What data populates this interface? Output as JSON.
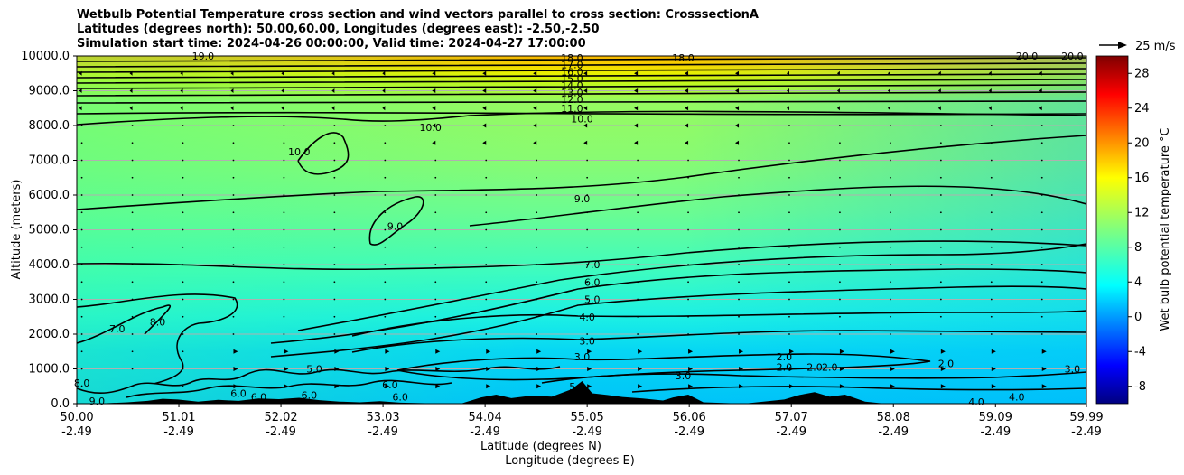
{
  "title_lines": [
    "Wetbulb Potential Temperature cross section and wind vectors parallel to cross section: CrosssectionA",
    "Latitudes (degrees north): 50.00,60.00, Longitudes (degrees east): -2.50,-2.50",
    "Simulation start time: 2024-04-26 00:00:00, Valid time: 2024-04-27 17:00:00"
  ],
  "chart_data": {
    "type": "heatmap",
    "ylabel": "Altitude (meters)",
    "xlabel": "Latitude (degrees N)",
    "xlabel2": "Longitude (degrees E)",
    "ylim": [
      0,
      10000
    ],
    "y_ticks": [
      "0.0",
      "1000.0",
      "2000.0",
      "3000.0",
      "4000.0",
      "5000.0",
      "6000.0",
      "7000.0",
      "8000.0",
      "9000.0",
      "10000.0"
    ],
    "x_ticks": [
      {
        "lat": "50.00",
        "lon": "-2.49"
      },
      {
        "lat": "51.01",
        "lon": "-2.49"
      },
      {
        "lat": "52.02",
        "lon": "-2.49"
      },
      {
        "lat": "53.03",
        "lon": "-2.49"
      },
      {
        "lat": "54.04",
        "lon": "-2.49"
      },
      {
        "lat": "55.05",
        "lon": "-2.49"
      },
      {
        "lat": "56.06",
        "lon": "-2.49"
      },
      {
        "lat": "57.07",
        "lon": "-2.49"
      },
      {
        "lat": "58.08",
        "lon": "-2.49"
      },
      {
        "lat": "59.09",
        "lon": "-2.49"
      },
      {
        "lat": "59.99",
        "lon": "-2.49"
      }
    ],
    "grid": "horizontal",
    "colorbar": {
      "label": "Wet bulb potential temperature $^\\circ$C",
      "label_display": "Wet bulb potential temperature °C",
      "range": [
        -10,
        30
      ],
      "ticks": [
        "-8",
        "-4",
        "0",
        "4",
        "8",
        "12",
        "16",
        "20",
        "24",
        "28"
      ],
      "colormap": "jet"
    },
    "wind_key": {
      "label": "25 m/s"
    },
    "contour_labels": [
      {
        "text": "18.0",
        "x": 54.9,
        "y": 9950
      },
      {
        "text": "17.0",
        "x": 54.9,
        "y": 9750
      },
      {
        "text": "16.0",
        "x": 54.9,
        "y": 9550
      },
      {
        "text": "15.0",
        "x": 54.9,
        "y": 9350
      },
      {
        "text": "14.0",
        "x": 54.9,
        "y": 9150
      },
      {
        "text": "13.0",
        "x": 54.9,
        "y": 8950
      },
      {
        "text": "12.0",
        "x": 54.9,
        "y": 8750
      },
      {
        "text": "11.0",
        "x": 54.9,
        "y": 8500
      },
      {
        "text": "10.0",
        "x": 55.0,
        "y": 8200
      },
      {
        "text": "18.0",
        "x": 56.0,
        "y": 9950
      },
      {
        "text": "19.0",
        "x": 51.25,
        "y": 10000
      },
      {
        "text": "20.0",
        "x": 59.4,
        "y": 10000
      },
      {
        "text": "20.0",
        "x": 59.85,
        "y": 10000
      },
      {
        "text": "10.0",
        "x": 53.5,
        "y": 7950
      },
      {
        "text": "10.0",
        "x": 52.2,
        "y": 7250
      },
      {
        "text": "9.0",
        "x": 55.0,
        "y": 5900
      },
      {
        "text": "9.0",
        "x": 53.15,
        "y": 5100
      },
      {
        "text": "8.0",
        "x": 50.8,
        "y": 2350
      },
      {
        "text": "7.0",
        "x": 55.1,
        "y": 4000
      },
      {
        "text": "7.0",
        "x": 50.4,
        "y": 2150
      },
      {
        "text": "6.0",
        "x": 55.1,
        "y": 3500
      },
      {
        "text": "5.0",
        "x": 55.1,
        "y": 3000
      },
      {
        "text": "5.0",
        "x": 52.35,
        "y": 1000
      },
      {
        "text": "4.0",
        "x": 55.05,
        "y": 2500
      },
      {
        "text": "4.0",
        "x": 58.9,
        "y": 50
      },
      {
        "text": "4.0",
        "x": 59.3,
        "y": 200
      },
      {
        "text": "3.0",
        "x": 55.05,
        "y": 1800
      },
      {
        "text": "3.0",
        "x": 55.0,
        "y": 1350
      },
      {
        "text": "3.0",
        "x": 56.0,
        "y": 800
      },
      {
        "text": "3.0",
        "x": 59.85,
        "y": 1000
      },
      {
        "text": "2.0",
        "x": 57.0,
        "y": 1350
      },
      {
        "text": "2.0",
        "x": 57.0,
        "y": 1050
      },
      {
        "text": "2.0",
        "x": 57.3,
        "y": 1050
      },
      {
        "text": "2.0",
        "x": 57.45,
        "y": 1050
      },
      {
        "text": "2.0",
        "x": 58.6,
        "y": 1150
      },
      {
        "text": "8.0",
        "x": 50.05,
        "y": 600
      },
      {
        "text": "9.0",
        "x": 50.2,
        "y": 80
      },
      {
        "text": "6.0",
        "x": 51.6,
        "y": 300
      },
      {
        "text": "6.0",
        "x": 51.8,
        "y": 200
      },
      {
        "text": "6.0",
        "x": 52.3,
        "y": 250
      },
      {
        "text": "6.0",
        "x": 53.1,
        "y": 550
      },
      {
        "text": "6.0",
        "x": 53.2,
        "y": 200
      },
      {
        "text": "5.0",
        "x": 54.95,
        "y": 500
      }
    ]
  }
}
